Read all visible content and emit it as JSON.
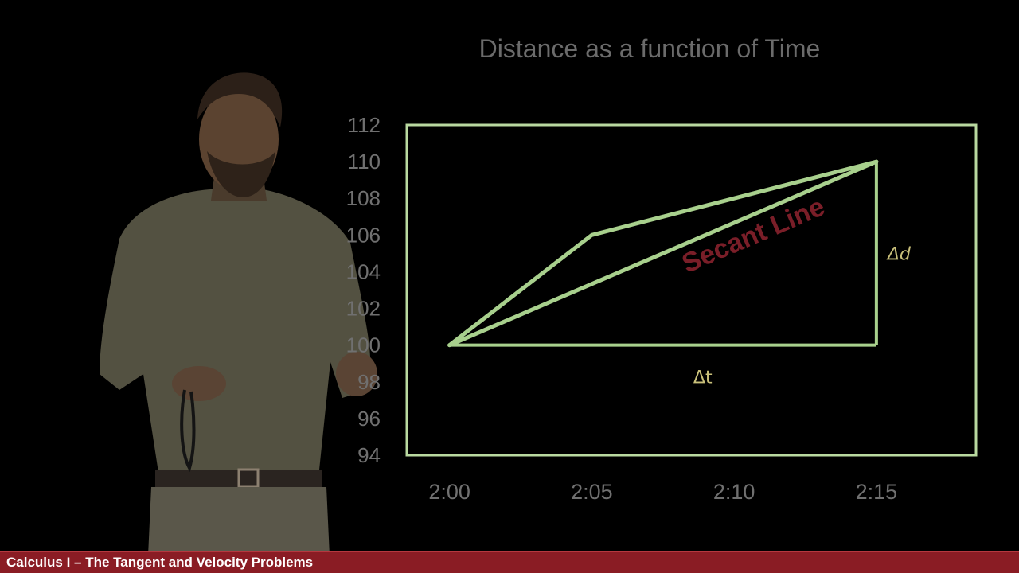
{
  "chart_data": {
    "type": "line",
    "title": "Distance as a function of Time",
    "xlabel": "",
    "ylabel": "",
    "x_ticks": [
      "2:00",
      "2:05",
      "2:10",
      "2:15"
    ],
    "y_ticks": [
      94,
      96,
      98,
      100,
      102,
      104,
      106,
      108,
      110,
      112
    ],
    "y_ticks_visible_labels": [
      "112",
      "110",
      "108",
      "106",
      "104",
      "102",
      "100",
      "98",
      "96",
      "94"
    ],
    "ylim": [
      94,
      112
    ],
    "xlim_minutes": [
      -1.5,
      18.5
    ],
    "grid": false,
    "series": [
      {
        "values_x_minutes": [
          0,
          5,
          15
        ],
        "values_y": [
          100,
          106,
          110
        ]
      }
    ],
    "secant": {
      "x_minutes": [
        0,
        15
      ],
      "y": [
        100,
        110
      ]
    },
    "rise_run": {
      "corner_x_minutes": 15,
      "corner_y": 100
    },
    "annotations": {
      "delta_t": "Δt",
      "delta_d": "Δd",
      "secant_label": "Secant Line"
    },
    "colors": {
      "curve": "#a8d08d",
      "frame": "#b9d9a0",
      "annotation_delta": "#c9c07a",
      "annotation_secant": "#7a1e28"
    }
  },
  "footer": {
    "title": "Calculus I – The Tangent and Velocity Problems",
    "background": "#8a1c24"
  }
}
